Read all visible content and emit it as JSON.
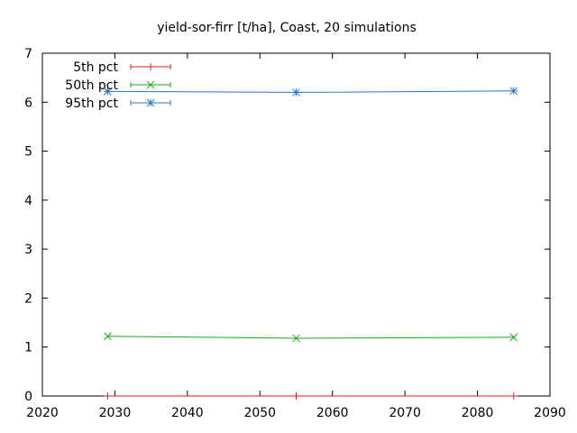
{
  "chart_data": {
    "type": "line",
    "title": "yield-sor-firr [t/ha], Coast, 20 simulations",
    "xlabel": "",
    "ylabel": "",
    "xlim": [
      2020,
      2090
    ],
    "ylim": [
      0,
      7
    ],
    "x_ticks": [
      2020,
      2030,
      2040,
      2050,
      2060,
      2070,
      2080,
      2090
    ],
    "y_ticks": [
      0,
      1,
      2,
      3,
      4,
      5,
      6,
      7
    ],
    "grid": false,
    "legend_position": "top-left",
    "x": [
      2029,
      2055,
      2085
    ],
    "series": [
      {
        "name": "5th pct",
        "values": [
          0.0,
          0.0,
          0.0
        ],
        "color": "#e41a1c",
        "marker": "plus"
      },
      {
        "name": "50th pct",
        "values": [
          1.22,
          1.18,
          1.2
        ],
        "color": "#1aaa1a",
        "marker": "cross"
      },
      {
        "name": "95th pct",
        "values": [
          6.22,
          6.2,
          6.23
        ],
        "color": "#1f78c8",
        "marker": "star"
      }
    ]
  }
}
